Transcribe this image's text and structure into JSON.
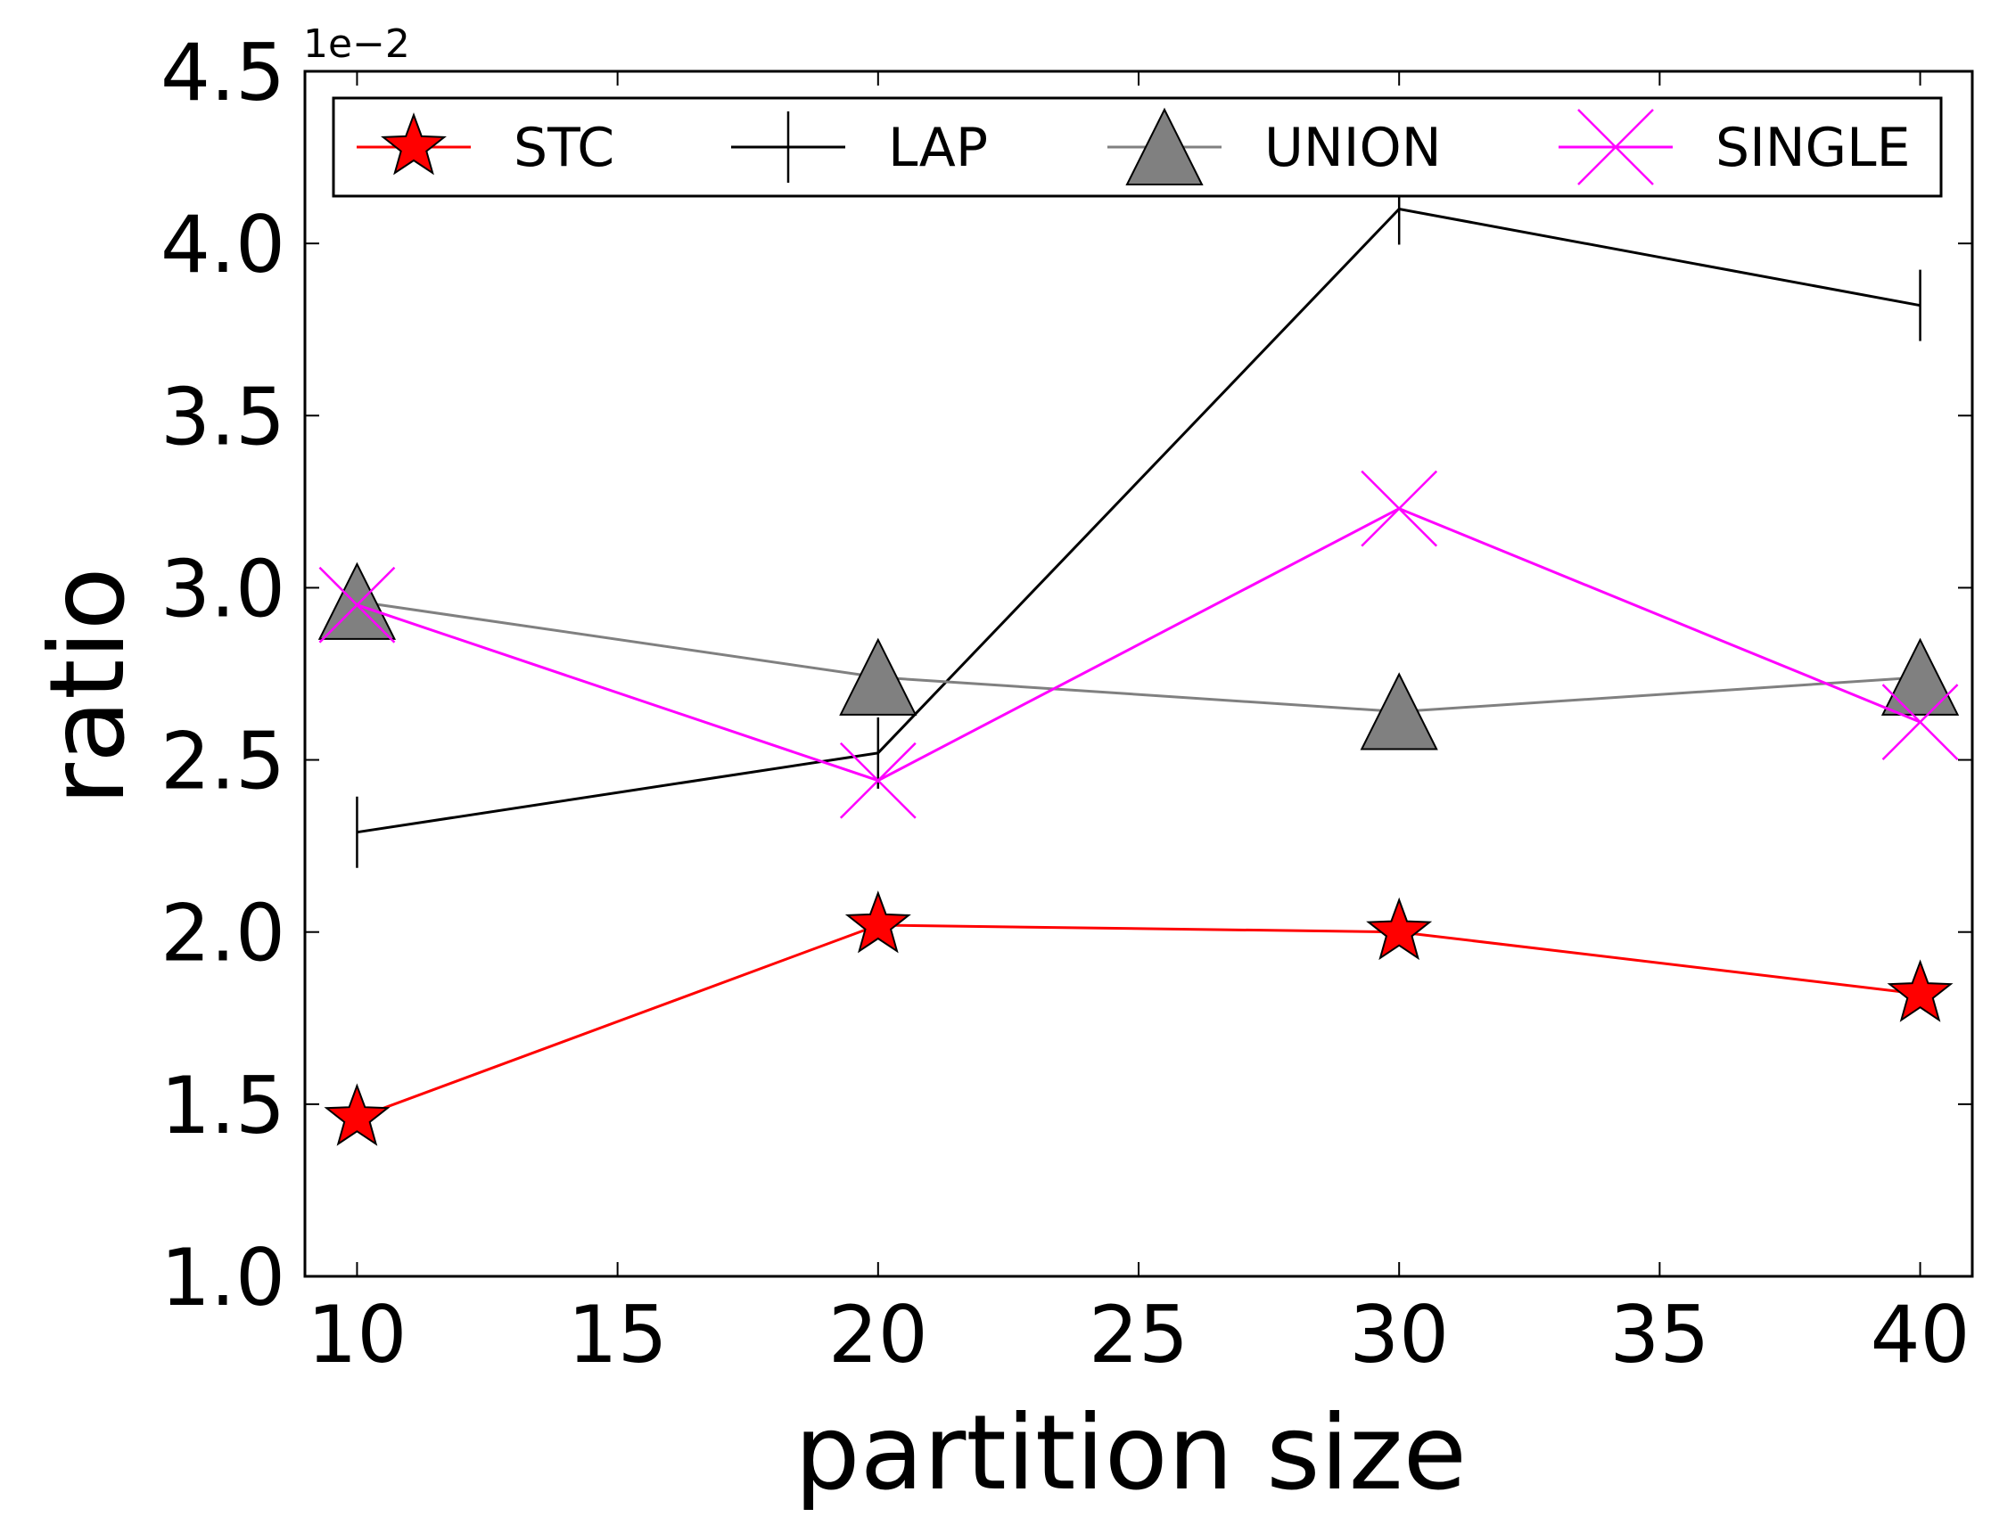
{
  "chart_data": {
    "type": "line",
    "xlabel": "partition size",
    "ylabel": "ratio",
    "y_offset_label": "1e−2",
    "xlim": [
      9,
      41
    ],
    "ylim": [
      1.0,
      4.5
    ],
    "xticks": [
      10,
      15,
      20,
      25,
      30,
      35,
      40
    ],
    "yticks": [
      1.0,
      1.5,
      2.0,
      2.5,
      3.0,
      3.5,
      4.0,
      4.5
    ],
    "x": [
      10,
      20,
      30,
      40
    ],
    "legend_position": "top",
    "grid": false,
    "series": [
      {
        "name": "STC",
        "values": [
          1.46,
          2.02,
          2.0,
          1.82
        ],
        "color": "#ff0000",
        "marker": "star"
      },
      {
        "name": "LAP",
        "values": [
          2.29,
          2.52,
          4.1,
          3.82
        ],
        "color": "#000000",
        "marker": "vline"
      },
      {
        "name": "UNION",
        "values": [
          2.96,
          2.74,
          2.64,
          2.74
        ],
        "color": "#808080",
        "marker": "triangle"
      },
      {
        "name": "SINGLE",
        "values": [
          2.95,
          2.44,
          3.23,
          2.61
        ],
        "color": "#ff00ff",
        "marker": "x"
      }
    ]
  }
}
